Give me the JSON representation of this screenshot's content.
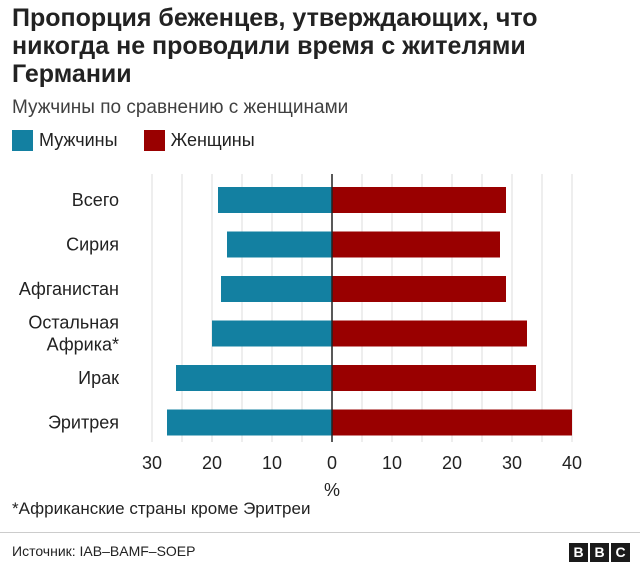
{
  "title": "Пропорция беженцев, утверждающих, что никогда не проводили время с жителями Германии",
  "subtitle": "Мужчины по сравнению с женщинами",
  "colors": {
    "men": "#1380a1",
    "women": "#990000",
    "grid": "#dcdcdc",
    "zero_line": "#222222"
  },
  "chart_data": {
    "type": "bar",
    "orientation": "horizontal-diverging",
    "categories": [
      "Всего",
      "Сирия",
      "Афганистан",
      "Остальная Африка*",
      "Ирак",
      "Эритрея"
    ],
    "category_lines": [
      [
        "Всего"
      ],
      [
        "Сирия"
      ],
      [
        "Афганистан"
      ],
      [
        "Остальная",
        "Африка*"
      ],
      [
        "Ирак"
      ],
      [
        "Эритрея"
      ]
    ],
    "series": [
      {
        "name": "Мужчины",
        "values": [
          19,
          17.5,
          18.5,
          20,
          26,
          27.5
        ],
        "color": "#1380a1",
        "direction": "left"
      },
      {
        "name": "Женщины",
        "values": [
          29,
          28,
          29,
          32.5,
          34,
          40
        ],
        "color": "#990000",
        "direction": "right"
      }
    ],
    "xlim": [
      -30,
      40
    ],
    "xticks": [
      -30,
      -20,
      -10,
      0,
      10,
      20,
      30,
      40
    ],
    "xtick_labels": [
      "30",
      "20",
      "10",
      "0",
      "10",
      "20",
      "30",
      "40"
    ],
    "xlabel": "%",
    "grid": true,
    "legend_position": "top-left"
  },
  "footnote": "*Африканские страны кроме Эритреи",
  "source": "Источник: IAB–BAMF–SOEP",
  "logo": {
    "letters": [
      "B",
      "B",
      "C"
    ]
  }
}
